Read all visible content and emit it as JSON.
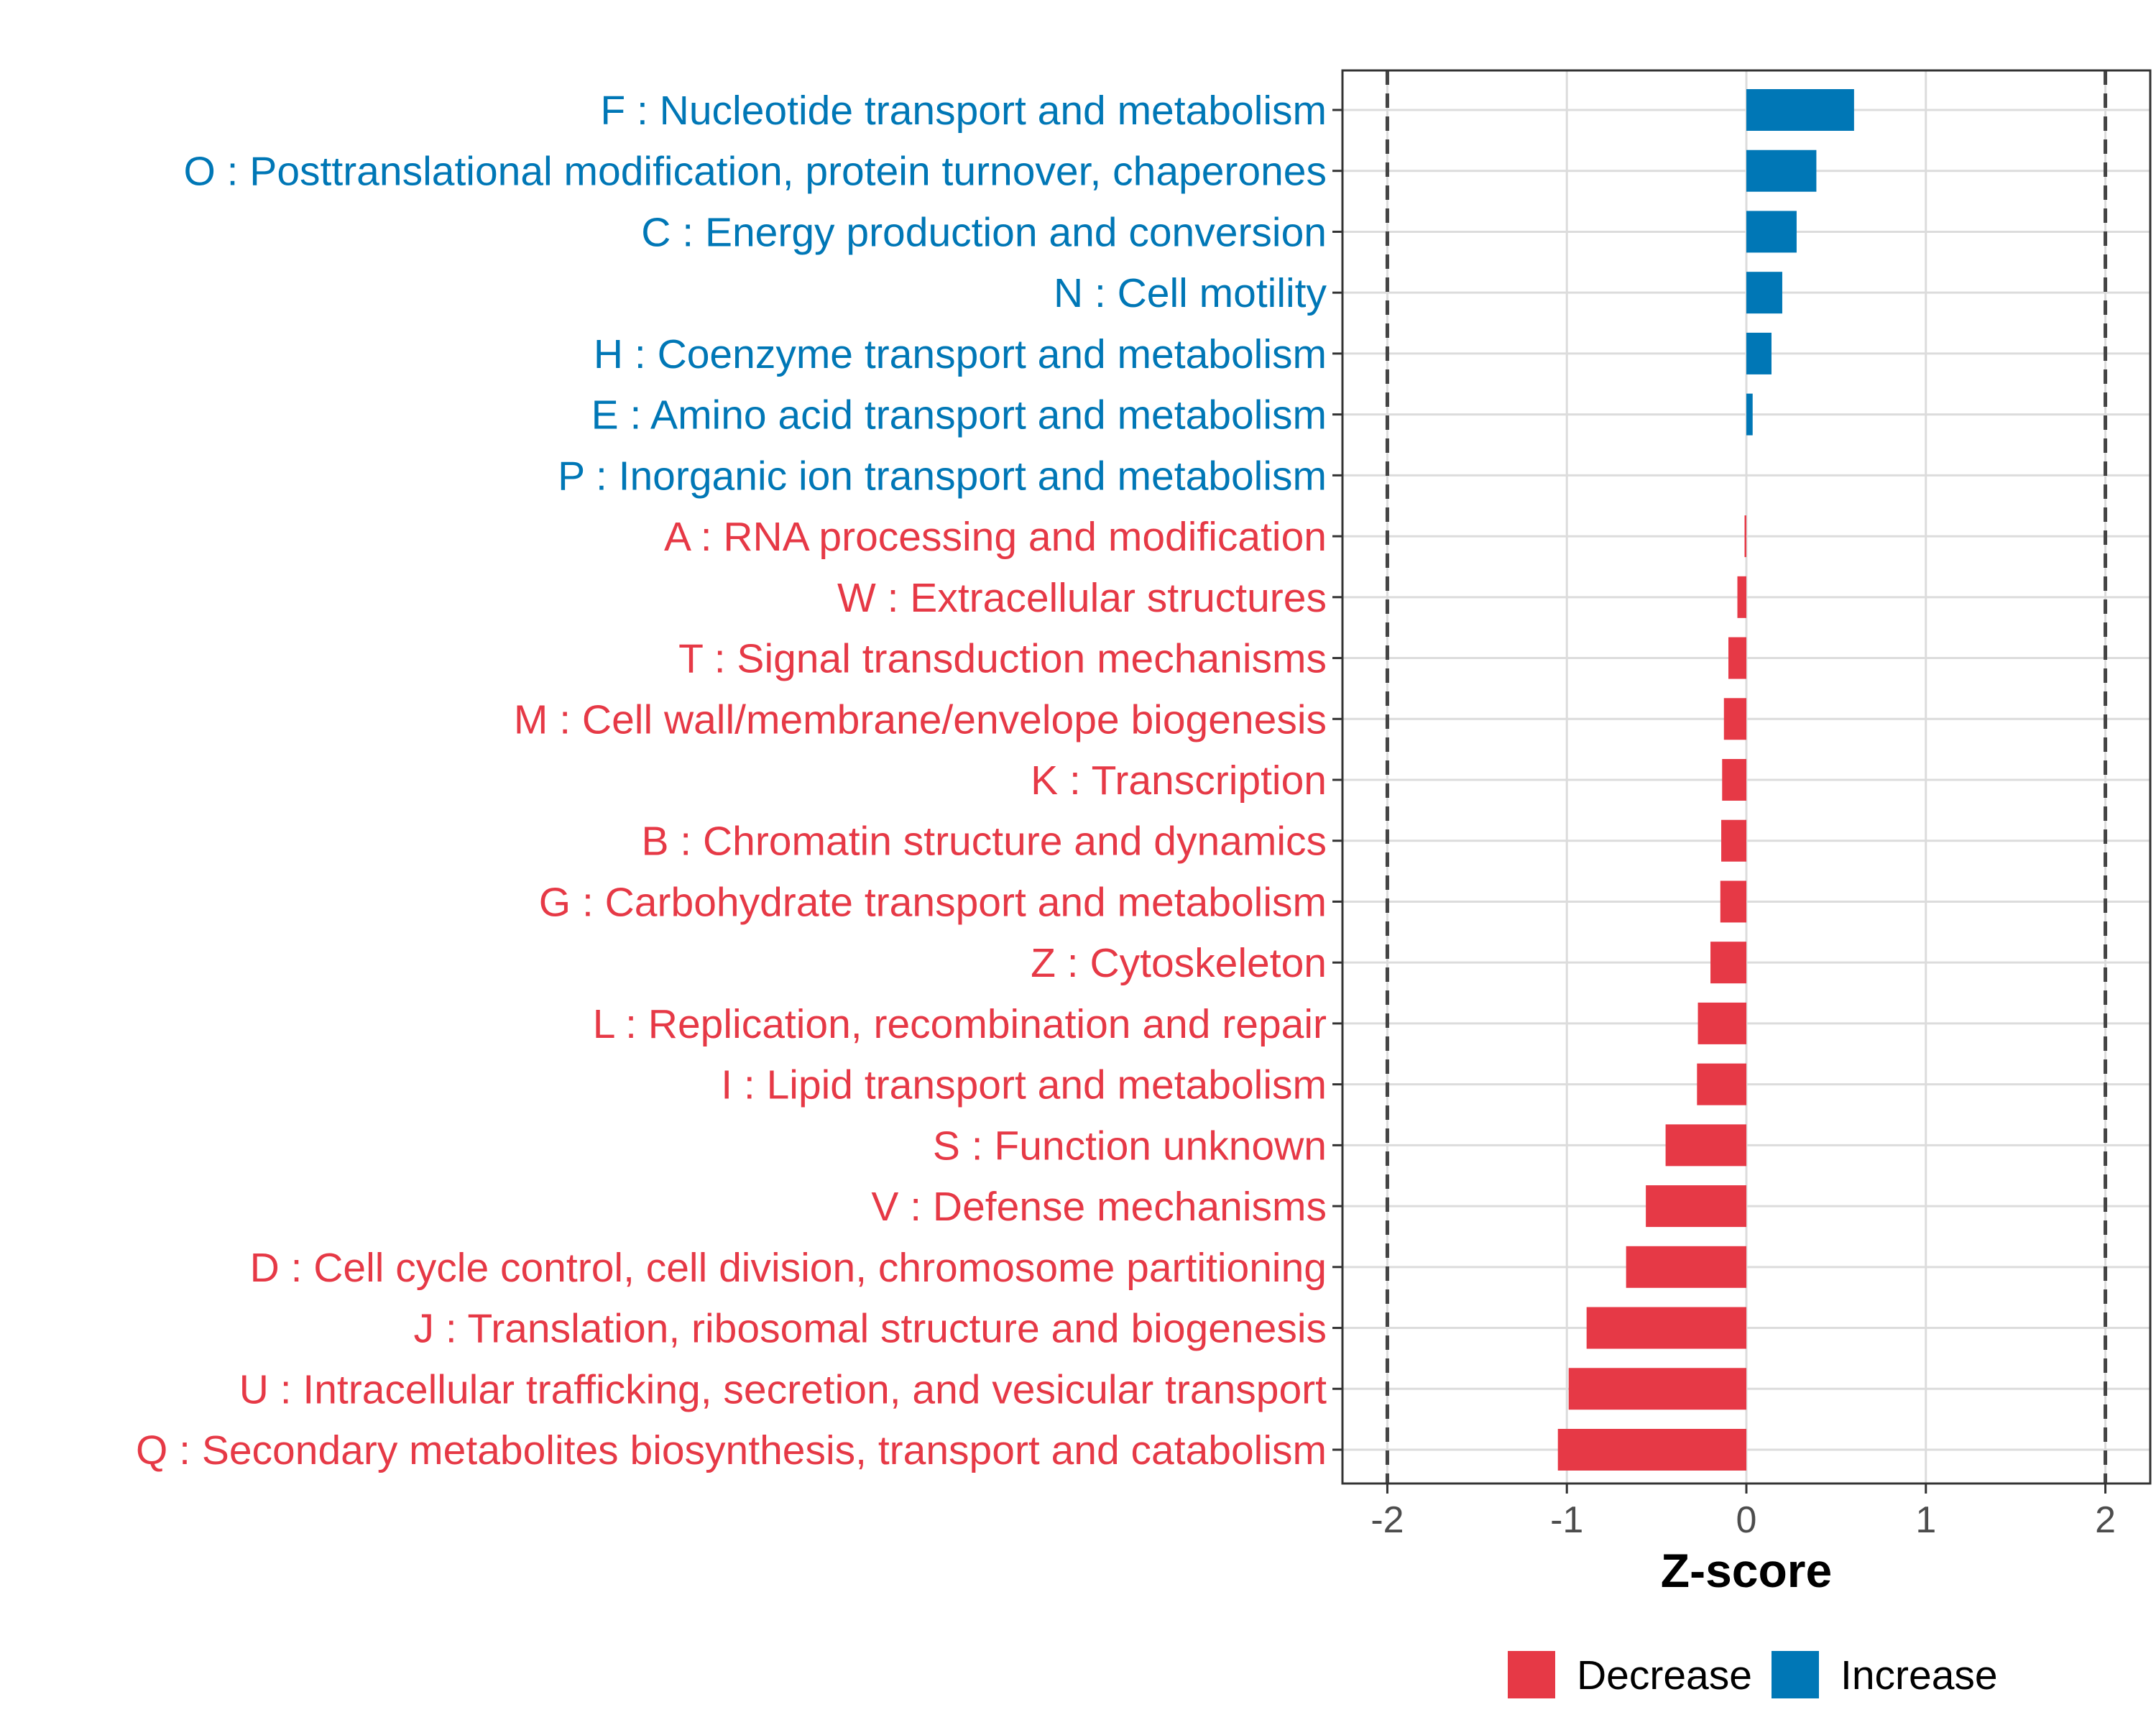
{
  "colors": {
    "decrease": "#E63946",
    "increase": "#0077B6",
    "grid": "#DCDCDC",
    "panel_border": "#333333",
    "threshold_line": "#444444"
  },
  "chart_data": {
    "type": "bar",
    "orientation": "horizontal",
    "title": "",
    "xlabel": "Z-score",
    "ylabel": "",
    "xlim": [
      -2.25,
      2.25
    ],
    "x_ticks": [
      -2,
      -1,
      0,
      1,
      2
    ],
    "x_tick_labels": [
      "-2",
      "-1",
      "0",
      "1",
      "2"
    ],
    "threshold_lines": [
      -2,
      2
    ],
    "grid": true,
    "legend": {
      "placement": "bottom",
      "entries": [
        {
          "key": "decrease",
          "label": "Decrease"
        },
        {
          "key": "increase",
          "label": "Increase"
        }
      ]
    },
    "categories": [
      {
        "label": "F : Nucleotide transport and metabolism",
        "value": 0.6,
        "direction": "increase"
      },
      {
        "label": "O : Posttranslational modification, protein turnover, chaperones",
        "value": 0.39,
        "direction": "increase"
      },
      {
        "label": "C : Energy production and conversion",
        "value": 0.28,
        "direction": "increase"
      },
      {
        "label": "N : Cell motility",
        "value": 0.2,
        "direction": "increase"
      },
      {
        "label": "H : Coenzyme transport and metabolism",
        "value": 0.14,
        "direction": "increase"
      },
      {
        "label": "E : Amino acid transport and metabolism",
        "value": 0.035,
        "direction": "increase"
      },
      {
        "label": "P : Inorganic ion transport and metabolism",
        "value": 0.0,
        "direction": "increase"
      },
      {
        "label": "A : RNA processing and modification",
        "value": -0.01,
        "direction": "decrease"
      },
      {
        "label": "W : Extracellular structures",
        "value": -0.05,
        "direction": "decrease"
      },
      {
        "label": "T : Signal transduction mechanisms",
        "value": -0.1,
        "direction": "decrease"
      },
      {
        "label": "M : Cell wall/membrane/envelope biogenesis",
        "value": -0.125,
        "direction": "decrease"
      },
      {
        "label": "K : Transcription",
        "value": -0.135,
        "direction": "decrease"
      },
      {
        "label": "B : Chromatin structure and dynamics",
        "value": -0.14,
        "direction": "decrease"
      },
      {
        "label": "G : Carbohydrate transport and metabolism",
        "value": -0.145,
        "direction": "decrease"
      },
      {
        "label": "Z : Cytoskeleton",
        "value": -0.2,
        "direction": "decrease"
      },
      {
        "label": "L : Replication, recombination and repair",
        "value": -0.27,
        "direction": "decrease"
      },
      {
        "label": "I : Lipid transport and metabolism",
        "value": -0.275,
        "direction": "decrease"
      },
      {
        "label": "S : Function unknown",
        "value": -0.45,
        "direction": "decrease"
      },
      {
        "label": "V : Defense mechanisms",
        "value": -0.56,
        "direction": "decrease"
      },
      {
        "label": "D : Cell cycle control, cell division, chromosome partitioning",
        "value": -0.67,
        "direction": "decrease"
      },
      {
        "label": "J : Translation, ribosomal structure and biogenesis",
        "value": -0.89,
        "direction": "decrease"
      },
      {
        "label": "U : Intracellular trafficking, secretion, and vesicular transport",
        "value": -0.99,
        "direction": "decrease"
      },
      {
        "label": "Q : Secondary metabolites biosynthesis, transport and catabolism",
        "value": -1.05,
        "direction": "decrease"
      }
    ]
  }
}
